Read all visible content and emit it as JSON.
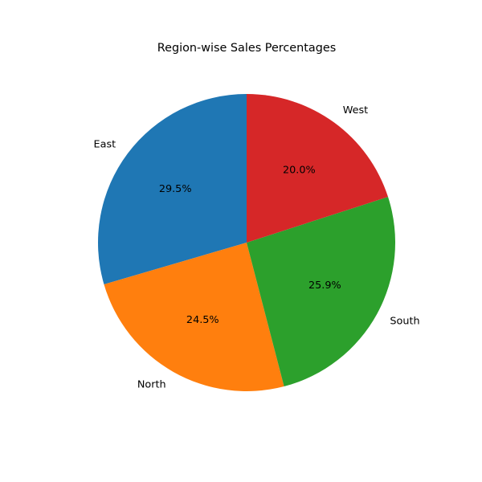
{
  "chart_data": {
    "type": "pie",
    "title": "Region-wise Sales Percentages",
    "labels": [
      "East",
      "North",
      "South",
      "West"
    ],
    "values": [
      29.5,
      24.5,
      25.9,
      20.0
    ],
    "value_labels": [
      "29.5%",
      "24.5%",
      "25.9%",
      "20.0%"
    ],
    "colors": [
      "#1f77b4",
      "#ff7f0e",
      "#2ca02c",
      "#d62728"
    ],
    "start_angle_deg": 90,
    "direction": "counterclockwise",
    "legend": "none"
  }
}
